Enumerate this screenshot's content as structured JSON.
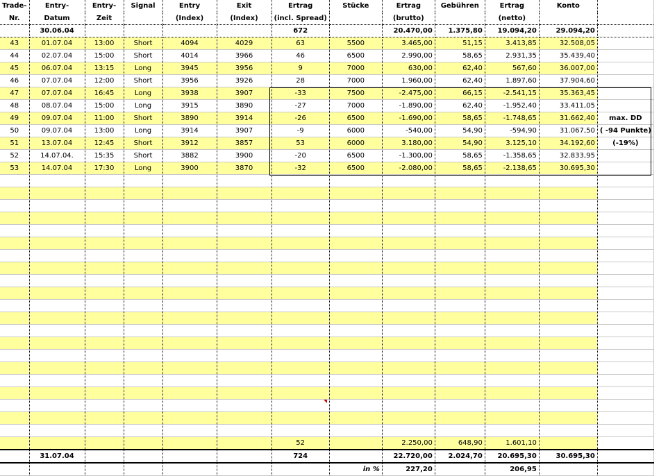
{
  "headers": [
    [
      "Trade-",
      "Nr."
    ],
    [
      "Entry-",
      "Datum"
    ],
    [
      "Entry-",
      "Zeit"
    ],
    [
      "Signal",
      ""
    ],
    [
      "Entry",
      "(Index)"
    ],
    [
      "Exit",
      "(Index)"
    ],
    [
      "Ertrag",
      "(incl. Spread)"
    ],
    [
      "Stücke",
      ""
    ],
    [
      "Ertrag",
      "(brutto)"
    ],
    [
      "Gebühren",
      ""
    ],
    [
      "Ertrag",
      "(netto)"
    ],
    [
      "Konto",
      ""
    ]
  ],
  "carry": [
    "",
    "30.06.04",
    "",
    "",
    "",
    "",
    "672",
    "",
    "20.470,00",
    "1.375,80",
    "19.094,20",
    "29.094,20",
    ""
  ],
  "rows": [
    [
      "43",
      "01.07.04",
      "13:00",
      "Short",
      "4094",
      "4029",
      "63",
      "5500",
      "3.465,00",
      "51,15",
      "3.413,85",
      "32.508,05",
      ""
    ],
    [
      "44",
      "02.07.04",
      "15:00",
      "Short",
      "4014",
      "3966",
      "46",
      "6500",
      "2.990,00",
      "58,65",
      "2.931,35",
      "35.439,40",
      ""
    ],
    [
      "45",
      "06.07.04",
      "13:15",
      "Long",
      "3945",
      "3956",
      "9",
      "7000",
      "630,00",
      "62,40",
      "567,60",
      "36.007,00",
      ""
    ],
    [
      "46",
      "07.07.04",
      "12:00",
      "Short",
      "3956",
      "3926",
      "28",
      "7000",
      "1.960,00",
      "62,40",
      "1.897,60",
      "37.904,60",
      ""
    ],
    [
      "47",
      "07.07.04",
      "16:45",
      "Long",
      "3938",
      "3907",
      "-33",
      "7500",
      "-2.475,00",
      "66,15",
      "-2.541,15",
      "35.363,45",
      ""
    ],
    [
      "48",
      "08.07.04",
      "15:00",
      "Long",
      "3915",
      "3890",
      "-27",
      "7000",
      "-1.890,00",
      "62,40",
      "-1.952,40",
      "33.411,05",
      ""
    ],
    [
      "49",
      "09.07.04",
      "11:00",
      "Short",
      "3890",
      "3914",
      "-26",
      "6500",
      "-1.690,00",
      "58,65",
      "-1.748,65",
      "31.662,40",
      "max. DD"
    ],
    [
      "50",
      "09.07.04",
      "13:00",
      "Long",
      "3914",
      "3907",
      "-9",
      "6000",
      "-540,00",
      "54,90",
      "-594,90",
      "31.067,50",
      "( -94 Punkte)"
    ],
    [
      "51",
      "13.07.04",
      "12:45",
      "Short",
      "3912",
      "3857",
      "53",
      "6000",
      "3.180,00",
      "54,90",
      "3.125,10",
      "34.192,60",
      "(-19%)"
    ],
    [
      "52",
      "14.07.04.",
      "15:35",
      "Short",
      "3882",
      "3900",
      "-20",
      "6500",
      "-1.300,00",
      "58,65",
      "-1.358,65",
      "32.833,95",
      ""
    ],
    [
      "53",
      "14.07.04",
      "17:30",
      "Long",
      "3900",
      "3870",
      "-32",
      "6500",
      "-2.080,00",
      "58,65",
      "-2.138,65",
      "30.695,30",
      ""
    ]
  ],
  "subtotal": [
    "",
    "",
    "",
    "",
    "",
    "",
    "52",
    "",
    "2.250,00",
    "648,90",
    "1.601,10",
    "",
    ""
  ],
  "total": [
    "",
    "31.07.04",
    "",
    "",
    "",
    "",
    "724",
    "",
    "22.720,00",
    "2.024,70",
    "20.695,30",
    "30.695,30",
    ""
  ],
  "percent": [
    "",
    "",
    "",
    "",
    "",
    "",
    "",
    "in %",
    "227,20",
    "",
    "206,95",
    "",
    ""
  ],
  "colors": {
    "stripe": "#ffff9e",
    "grid": "#c8c8c8",
    "comment_marker": "#d00000"
  }
}
